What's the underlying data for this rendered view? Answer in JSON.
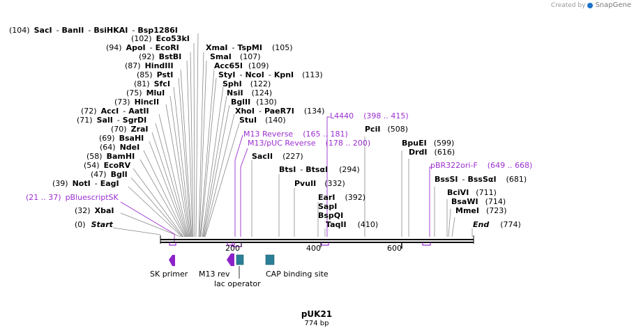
{
  "credit": {
    "prefix": "Created by",
    "brand": "SnapGene"
  },
  "plasmid": {
    "name": "pUK21",
    "size_label": "774 bp",
    "length": 774
  },
  "enzymes": {
    "sacI": {
      "pos": "(104)",
      "name": "SacI"
    },
    "banII": {
      "name": "BanII"
    },
    "bsiHKAI": {
      "name": "BsiHKAI"
    },
    "bsp1286I": {
      "name": "Bsp1286I"
    },
    "eco53kI": {
      "pos": "(102)",
      "name": "Eco53kI"
    },
    "apoI": {
      "pos": "(94)",
      "name": "ApoI"
    },
    "ecoRI": {
      "name": "EcoRI"
    },
    "bstBI": {
      "pos": "(92)",
      "name": "BstBI"
    },
    "hindIII": {
      "pos": "(87)",
      "name": "HindIII"
    },
    "pstI": {
      "pos": "(85)",
      "name": "PstI"
    },
    "sfcI": {
      "pos": "(81)",
      "name": "SfcI"
    },
    "mluI": {
      "pos": "(75)",
      "name": "MluI"
    },
    "hincII": {
      "pos": "(73)",
      "name": "HincII"
    },
    "accI": {
      "pos": "(72)",
      "name": "AccI"
    },
    "aatII": {
      "name": "AatII"
    },
    "salI": {
      "pos": "(71)",
      "name": "SalI"
    },
    "sgrDI": {
      "name": "SgrDI"
    },
    "zraI": {
      "pos": "(70)",
      "name": "ZraI"
    },
    "bsaHI": {
      "pos": "(69)",
      "name": "BsaHI"
    },
    "ndeI": {
      "pos": "(64)",
      "name": "NdeI"
    },
    "bamHI": {
      "pos": "(58)",
      "name": "BamHI"
    },
    "ecoRV": {
      "pos": "(54)",
      "name": "EcoRV"
    },
    "bglI": {
      "pos": "(47)",
      "name": "BglI"
    },
    "notI": {
      "pos": "(39)",
      "name": "NotI"
    },
    "eagI": {
      "name": "EagI"
    },
    "xbaI": {
      "pos": "(32)",
      "name": "XbaI"
    },
    "start": {
      "pos": "(0)",
      "name": "Start"
    },
    "xmaI": {
      "name": "XmaI",
      "pos": "(105)"
    },
    "tspMI": {
      "name": "TspMI"
    },
    "smaI": {
      "name": "SmaI",
      "pos": "(107)"
    },
    "acc65I": {
      "name": "Acc65I",
      "pos": "(109)"
    },
    "styI": {
      "name": "StyI"
    },
    "ncoI": {
      "name": "NcoI"
    },
    "kpnI": {
      "name": "KpnI",
      "pos": "(113)"
    },
    "sphI": {
      "name": "SphI",
      "pos": "(122)"
    },
    "nsiI": {
      "name": "NsiI",
      "pos": "(124)"
    },
    "bglII": {
      "name": "BglII",
      "pos": "(130)"
    },
    "xhoI": {
      "name": "XhoI"
    },
    "paeR7I": {
      "name": "PaeR7I",
      "pos": "(134)"
    },
    "stuI": {
      "name": "StuI",
      "pos": "(140)"
    },
    "sacII": {
      "name": "SacII",
      "pos": "(227)"
    },
    "btsI": {
      "name": "BtsI"
    },
    "btsaI": {
      "name": "BtsαI",
      "pos": "(294)"
    },
    "pvuII": {
      "name": "PvuII",
      "pos": "(332)"
    },
    "earI": {
      "name": "EarI",
      "pos": "(392)"
    },
    "sapI": {
      "name": "SapI"
    },
    "bspQI": {
      "name": "BspQI"
    },
    "taqII": {
      "name": "TaqII",
      "pos": "(410)"
    },
    "pciI": {
      "name": "PciI",
      "pos": "(508)"
    },
    "bpuEI": {
      "name": "BpuEI",
      "pos": "(599)"
    },
    "drdI": {
      "name": "DrdI",
      "pos": "(616)"
    },
    "bssSI": {
      "name": "BssSI"
    },
    "bssSaI": {
      "name": "BssSαI",
      "pos": "(681)"
    },
    "bciVI": {
      "name": "BciVI",
      "pos": "(711)"
    },
    "bsaWI": {
      "name": "BsaWI",
      "pos": "(714)"
    },
    "mmeI": {
      "name": "MmeI",
      "pos": "(723)"
    },
    "end": {
      "name": "End",
      "pos": "(774)"
    }
  },
  "primers": {
    "pBluescriptSK": {
      "range": "(21 .. 37)",
      "name": "pBluescriptSK"
    },
    "m13Reverse": {
      "name": "M13 Reverse",
      "range": "(165 .. 181)"
    },
    "m13pucReverse": {
      "name": "M13/pUC Reverse",
      "range": "(178 .. 200)"
    },
    "l4440": {
      "name": "L4440",
      "range": "(398 .. 415)"
    },
    "pbr322oriF": {
      "name": "pBR322ori-F",
      "range": "(649 .. 668)"
    }
  },
  "ruler": {
    "ticks": [
      "200",
      "400",
      "600"
    ]
  },
  "features": {
    "skPrimer": "SK primer",
    "m13Rev": "M13 rev",
    "lacOperator": "lac operator",
    "capSite": "CAP binding site"
  },
  "colors": {
    "primer": "#9b2fd0",
    "feature": "#2a7f96",
    "arrow": "#8b22c9",
    "line": "#000000"
  }
}
